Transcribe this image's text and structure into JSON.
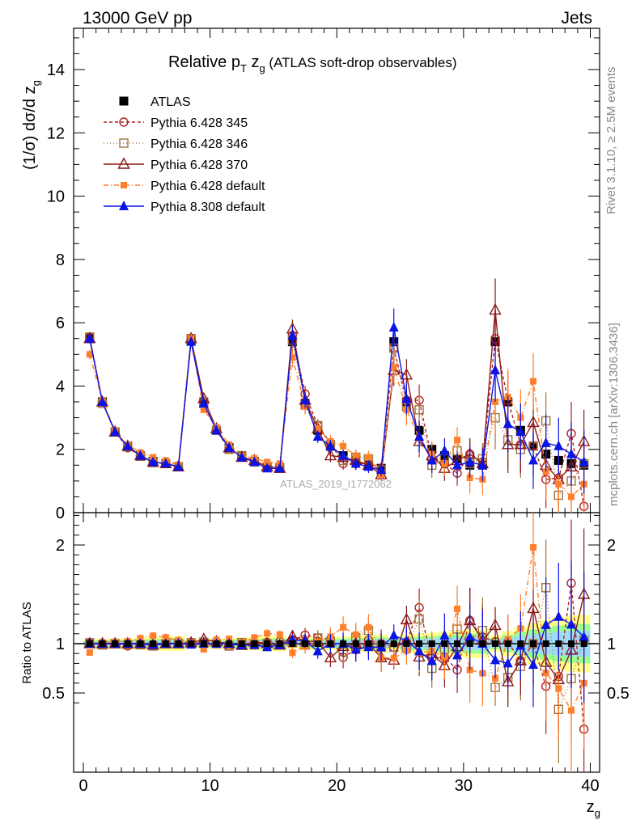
{
  "header": {
    "left": "13000 GeV pp",
    "right": "Jets"
  },
  "side": {
    "rivet": "Rivet 3.1.10, ≥ 2.5M events",
    "mcplots": "mcplots.cern.ch [arXiv:1306.3436]"
  },
  "chart_data": [
    {
      "type": "scatter",
      "title_main": "Relative p",
      "title_sub_T": "T",
      "title_z": " z",
      "title_sub_g": "g",
      "title_rest": " (ATLAS soft-drop observables)",
      "ylabel_main": "(1/σ) dσ/d z",
      "ylabel_sub": "g",
      "watermark": "ATLAS_2019_I1772062",
      "ylim": [
        0,
        15.3
      ],
      "xlim": [
        -1,
        41
      ],
      "y_ticks": [
        "0",
        "2",
        "4",
        "6",
        "8",
        "10",
        "12",
        "14"
      ],
      "legend_position": "top-left",
      "x": [
        0.5,
        1.5,
        2.5,
        3.5,
        4.5,
        5.5,
        6.5,
        7.5,
        8.5,
        9.5,
        10.5,
        11.5,
        12.5,
        13.5,
        14.5,
        15.5,
        16.5,
        17.5,
        18.5,
        19.5,
        20.5,
        21.5,
        22.5,
        23.5,
        24.5,
        25.5,
        26.5,
        27.5,
        28.5,
        29.5,
        30.5,
        31.5,
        32.5,
        33.5,
        34.5,
        35.5,
        36.5,
        37.5,
        38.5,
        39.5
      ],
      "series": [
        {
          "name": "ATLAS",
          "color": "#000000",
          "marker": "square-filled",
          "dash": "none",
          "values": [
            5.5,
            3.5,
            2.55,
            2.1,
            1.8,
            1.62,
            1.55,
            1.45,
            5.45,
            3.45,
            2.6,
            2.05,
            1.78,
            1.62,
            1.45,
            1.42,
            5.4,
            3.45,
            2.6,
            2.1,
            1.8,
            1.65,
            1.5,
            1.4,
            5.4,
            3.5,
            2.6,
            2.0,
            1.8,
            1.7,
            1.5,
            1.5,
            5.4,
            3.5,
            2.6,
            2.1,
            1.85,
            1.65,
            1.55,
            1.5
          ],
          "errors": [
            0.1,
            0.08,
            0.06,
            0.05,
            0.05,
            0.05,
            0.05,
            0.05,
            0.1,
            0.08,
            0.06,
            0.05,
            0.05,
            0.05,
            0.05,
            0.05,
            0.12,
            0.1,
            0.08,
            0.06,
            0.06,
            0.06,
            0.06,
            0.06,
            0.15,
            0.15,
            0.12,
            0.1,
            0.1,
            0.1,
            0.1,
            0.1,
            0.2,
            0.2,
            0.2,
            0.2,
            0.2,
            0.2,
            0.2,
            0.2
          ]
        },
        {
          "name": "Pythia 6.428 345",
          "color": "#b22222",
          "marker": "circle-open",
          "dash": "4,3",
          "values": [
            5.55,
            3.5,
            2.55,
            2.05,
            1.8,
            1.6,
            1.55,
            1.48,
            5.5,
            3.45,
            2.6,
            2.0,
            1.78,
            1.6,
            1.47,
            1.45,
            5.6,
            3.75,
            2.75,
            2.2,
            1.55,
            1.55,
            1.55,
            1.4,
            5.2,
            3.55,
            3.55,
            1.7,
            1.55,
            1.25,
            1.85,
            1.6,
            5.5,
            3.55,
            2.15,
            2.1,
            1.05,
            1.1,
            2.5,
            0.2
          ],
          "errors": [
            0.15,
            0.1,
            0.08,
            0.06,
            0.06,
            0.06,
            0.06,
            0.06,
            0.15,
            0.1,
            0.08,
            0.06,
            0.06,
            0.06,
            0.06,
            0.06,
            0.3,
            0.25,
            0.2,
            0.2,
            0.2,
            0.2,
            0.2,
            0.2,
            0.5,
            0.5,
            0.5,
            0.4,
            0.4,
            0.4,
            0.5,
            0.5,
            1.0,
            0.9,
            0.9,
            0.9,
            0.9,
            0.9,
            1.0,
            1.0
          ]
        },
        {
          "name": "Pythia 6.428 346",
          "color": "#a0753f",
          "marker": "square-open",
          "dash": "1,3",
          "values": [
            5.55,
            3.45,
            2.55,
            2.08,
            1.78,
            1.58,
            1.55,
            1.45,
            5.5,
            3.5,
            2.6,
            2.0,
            1.8,
            1.6,
            1.45,
            1.4,
            5.45,
            3.4,
            2.75,
            2.15,
            1.65,
            1.75,
            1.7,
            1.35,
            5.2,
            3.35,
            3.25,
            1.5,
            1.7,
            1.95,
            1.55,
            1.7,
            3.0,
            2.3,
            2.0,
            2.1,
            2.9,
            0.55,
            1.0,
            1.55
          ],
          "errors": [
            0.15,
            0.1,
            0.08,
            0.06,
            0.06,
            0.06,
            0.06,
            0.06,
            0.15,
            0.1,
            0.08,
            0.06,
            0.06,
            0.06,
            0.06,
            0.06,
            0.3,
            0.25,
            0.2,
            0.2,
            0.2,
            0.2,
            0.2,
            0.2,
            0.5,
            0.5,
            0.5,
            0.4,
            0.4,
            0.4,
            0.5,
            0.5,
            1.0,
            0.9,
            0.9,
            0.9,
            0.9,
            0.9,
            1.0,
            1.0
          ]
        },
        {
          "name": "Pythia 6.428 370",
          "color": "#8b1a1a",
          "marker": "triangle-open",
          "dash": "none",
          "values": [
            5.5,
            3.5,
            2.55,
            2.1,
            1.8,
            1.6,
            1.55,
            1.45,
            5.5,
            3.6,
            2.65,
            2.05,
            1.75,
            1.65,
            1.45,
            1.4,
            5.8,
            3.55,
            2.65,
            1.8,
            1.75,
            1.65,
            1.5,
            1.2,
            4.5,
            4.35,
            2.25,
            1.8,
            1.4,
            1.65,
            1.85,
            1.55,
            6.4,
            2.15,
            2.15,
            2.85,
            1.5,
            1.05,
            1.45,
            2.25
          ],
          "errors": [
            0.15,
            0.1,
            0.08,
            0.06,
            0.06,
            0.06,
            0.06,
            0.06,
            0.15,
            0.1,
            0.08,
            0.06,
            0.06,
            0.06,
            0.06,
            0.06,
            0.3,
            0.25,
            0.2,
            0.2,
            0.2,
            0.2,
            0.2,
            0.2,
            0.5,
            0.5,
            0.5,
            0.4,
            0.4,
            0.4,
            0.5,
            0.5,
            1.0,
            0.9,
            0.9,
            0.9,
            0.9,
            0.9,
            1.0,
            1.0
          ]
        },
        {
          "name": "Pythia 6.428 default",
          "color": "#ff7f2a",
          "marker": "square-filled-small",
          "dash": "6,3,1,3",
          "values": [
            5.0,
            3.55,
            2.6,
            2.15,
            1.9,
            1.75,
            1.65,
            1.5,
            5.5,
            3.25,
            2.7,
            2.15,
            1.8,
            1.72,
            1.6,
            1.55,
            4.9,
            3.35,
            2.65,
            2.25,
            2.1,
            1.8,
            1.75,
            1.2,
            4.6,
            3.25,
            2.35,
            1.85,
            1.55,
            2.3,
            1.1,
            1.05,
            3.5,
            3.65,
            3.0,
            4.15,
            1.3,
            0.9,
            0.5,
            0.9
          ],
          "errors": [
            0.15,
            0.1,
            0.08,
            0.06,
            0.06,
            0.06,
            0.06,
            0.06,
            0.15,
            0.1,
            0.08,
            0.06,
            0.06,
            0.06,
            0.06,
            0.06,
            0.3,
            0.25,
            0.2,
            0.2,
            0.2,
            0.2,
            0.2,
            0.2,
            0.5,
            0.5,
            0.5,
            0.4,
            0.4,
            0.4,
            0.5,
            0.5,
            1.0,
            0.9,
            0.9,
            0.9,
            0.9,
            0.9,
            1.0,
            1.0
          ]
        },
        {
          "name": "Pythia 8.308 default",
          "color": "#0a14e6",
          "marker": "triangle-filled",
          "dash": "none",
          "values": [
            5.5,
            3.5,
            2.55,
            2.1,
            1.8,
            1.6,
            1.55,
            1.45,
            5.4,
            3.45,
            2.6,
            2.05,
            1.75,
            1.6,
            1.4,
            1.4,
            5.6,
            3.55,
            2.4,
            2.1,
            1.8,
            1.55,
            1.45,
            1.35,
            5.85,
            3.6,
            2.4,
            1.65,
            1.95,
            1.5,
            1.6,
            1.5,
            4.5,
            2.8,
            2.55,
            1.65,
            2.2,
            2.1,
            1.85,
            1.6
          ],
          "errors": [
            0.12,
            0.1,
            0.08,
            0.06,
            0.06,
            0.06,
            0.06,
            0.06,
            0.15,
            0.1,
            0.08,
            0.06,
            0.06,
            0.06,
            0.06,
            0.06,
            0.3,
            0.25,
            0.2,
            0.2,
            0.2,
            0.2,
            0.2,
            0.2,
            0.6,
            0.5,
            0.5,
            0.4,
            0.4,
            0.4,
            0.5,
            0.5,
            1.0,
            0.9,
            0.9,
            0.9,
            0.9,
            0.9,
            1.0,
            1.0
          ]
        }
      ]
    },
    {
      "type": "scatter",
      "ylabel": "Ratio to ATLAS",
      "xlabel_main": "z",
      "xlabel_sub": "g",
      "ylim": [
        0.38,
        2.35
      ],
      "xlim": [
        -1,
        41
      ],
      "y_ticks": [
        {
          "value": 0.5,
          "label": "0.5"
        },
        {
          "value": 1,
          "label": "1"
        },
        {
          "value": 2,
          "label": "2"
        }
      ],
      "x_ticks": [
        {
          "value": 0,
          "label": "0"
        },
        {
          "value": 10,
          "label": "10"
        },
        {
          "value": 20,
          "label": "20"
        },
        {
          "value": 30,
          "label": "30"
        },
        {
          "value": 40,
          "label": "40"
        }
      ],
      "reference": 1,
      "band_colors": [
        "#ffff80",
        "#90ff90",
        "#a0d8ff"
      ]
    }
  ]
}
